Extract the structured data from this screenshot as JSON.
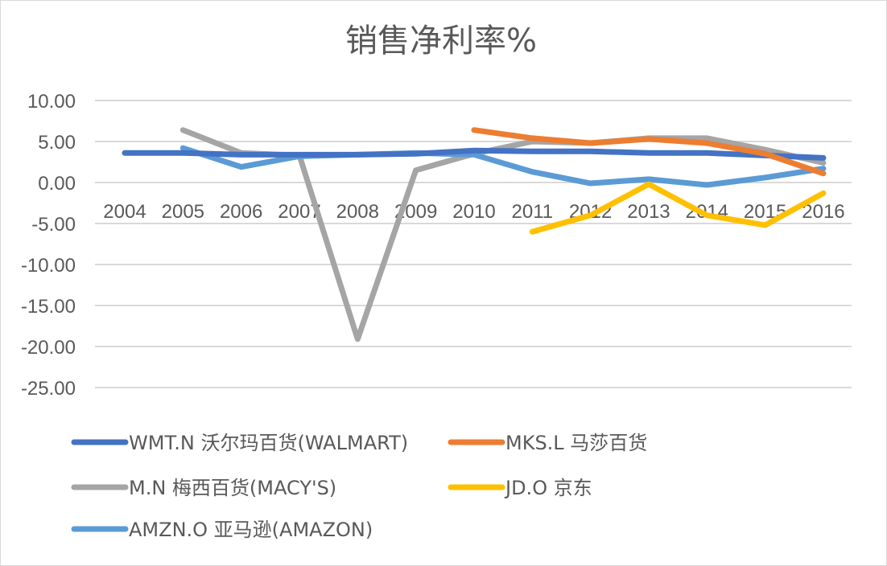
{
  "chart_data": {
    "type": "line",
    "title": "销售净利率%",
    "xlabel": "",
    "ylabel": "",
    "categories": [
      "2004",
      "2005",
      "2006",
      "2007",
      "2008",
      "2009",
      "2010",
      "2011",
      "2012",
      "2013",
      "2014",
      "2015",
      "2016"
    ],
    "ylim": [
      -25,
      10
    ],
    "yticks": [
      "10.00",
      "5.00",
      "0.00",
      "-5.00",
      "-10.00",
      "-15.00",
      "-20.00",
      "-25.00"
    ],
    "grid": true,
    "legend_position": "bottom",
    "series": [
      {
        "name": "WMT.N 沃尔玛百货(WALMART)",
        "color": "#4472C4",
        "values": [
          3.6,
          3.6,
          3.4,
          3.4,
          3.4,
          3.5,
          3.9,
          3.8,
          3.8,
          3.6,
          3.6,
          3.3,
          3.0
        ]
      },
      {
        "name": "MKS.L 马莎百货",
        "color": "#ED7D31",
        "values": [
          null,
          null,
          null,
          null,
          null,
          null,
          6.4,
          5.4,
          4.8,
          5.3,
          4.8,
          3.5,
          1.1
        ]
      },
      {
        "name": "M.N 梅西百货(MACY'S)",
        "color": "#A5A5A5",
        "values": [
          null,
          6.4,
          3.6,
          3.3,
          -19.1,
          1.5,
          3.5,
          5.0,
          4.8,
          5.4,
          5.4,
          4.0,
          2.4
        ]
      },
      {
        "name": "JD.O 京东",
        "color": "#FFC000",
        "values": [
          null,
          null,
          null,
          null,
          null,
          null,
          null,
          -6.0,
          -4.0,
          -0.2,
          -4.0,
          -5.2,
          -1.3
        ]
      },
      {
        "name": "AMZN.O 亚马逊(AMAZON)",
        "color": "#5B9BD5",
        "values": [
          null,
          4.2,
          1.9,
          3.2,
          3.4,
          3.6,
          3.4,
          1.3,
          -0.1,
          0.4,
          -0.3,
          0.6,
          1.7
        ]
      }
    ]
  }
}
